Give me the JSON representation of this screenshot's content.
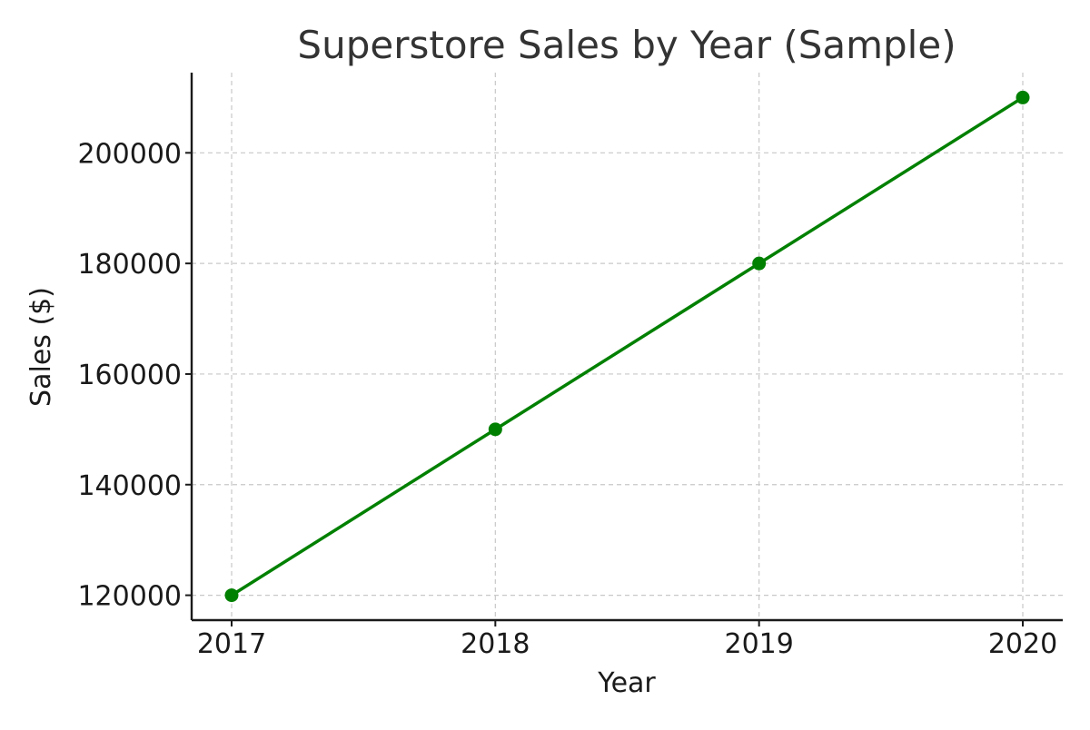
{
  "chart_data": {
    "type": "line",
    "title": "Superstore Sales by Year (Sample)",
    "xlabel": "Year",
    "ylabel": "Sales ($)",
    "x": [
      "2017",
      "2018",
      "2019",
      "2020"
    ],
    "series": [
      {
        "values": [
          120000,
          150000,
          180000,
          210000
        ],
        "color": "#008000",
        "marker": "circle"
      }
    ],
    "yticks": [
      120000,
      140000,
      160000,
      180000,
      200000
    ],
    "ylim": [
      115500,
      214500
    ],
    "grid": true,
    "grid_style": "dashed",
    "legend": "none"
  }
}
